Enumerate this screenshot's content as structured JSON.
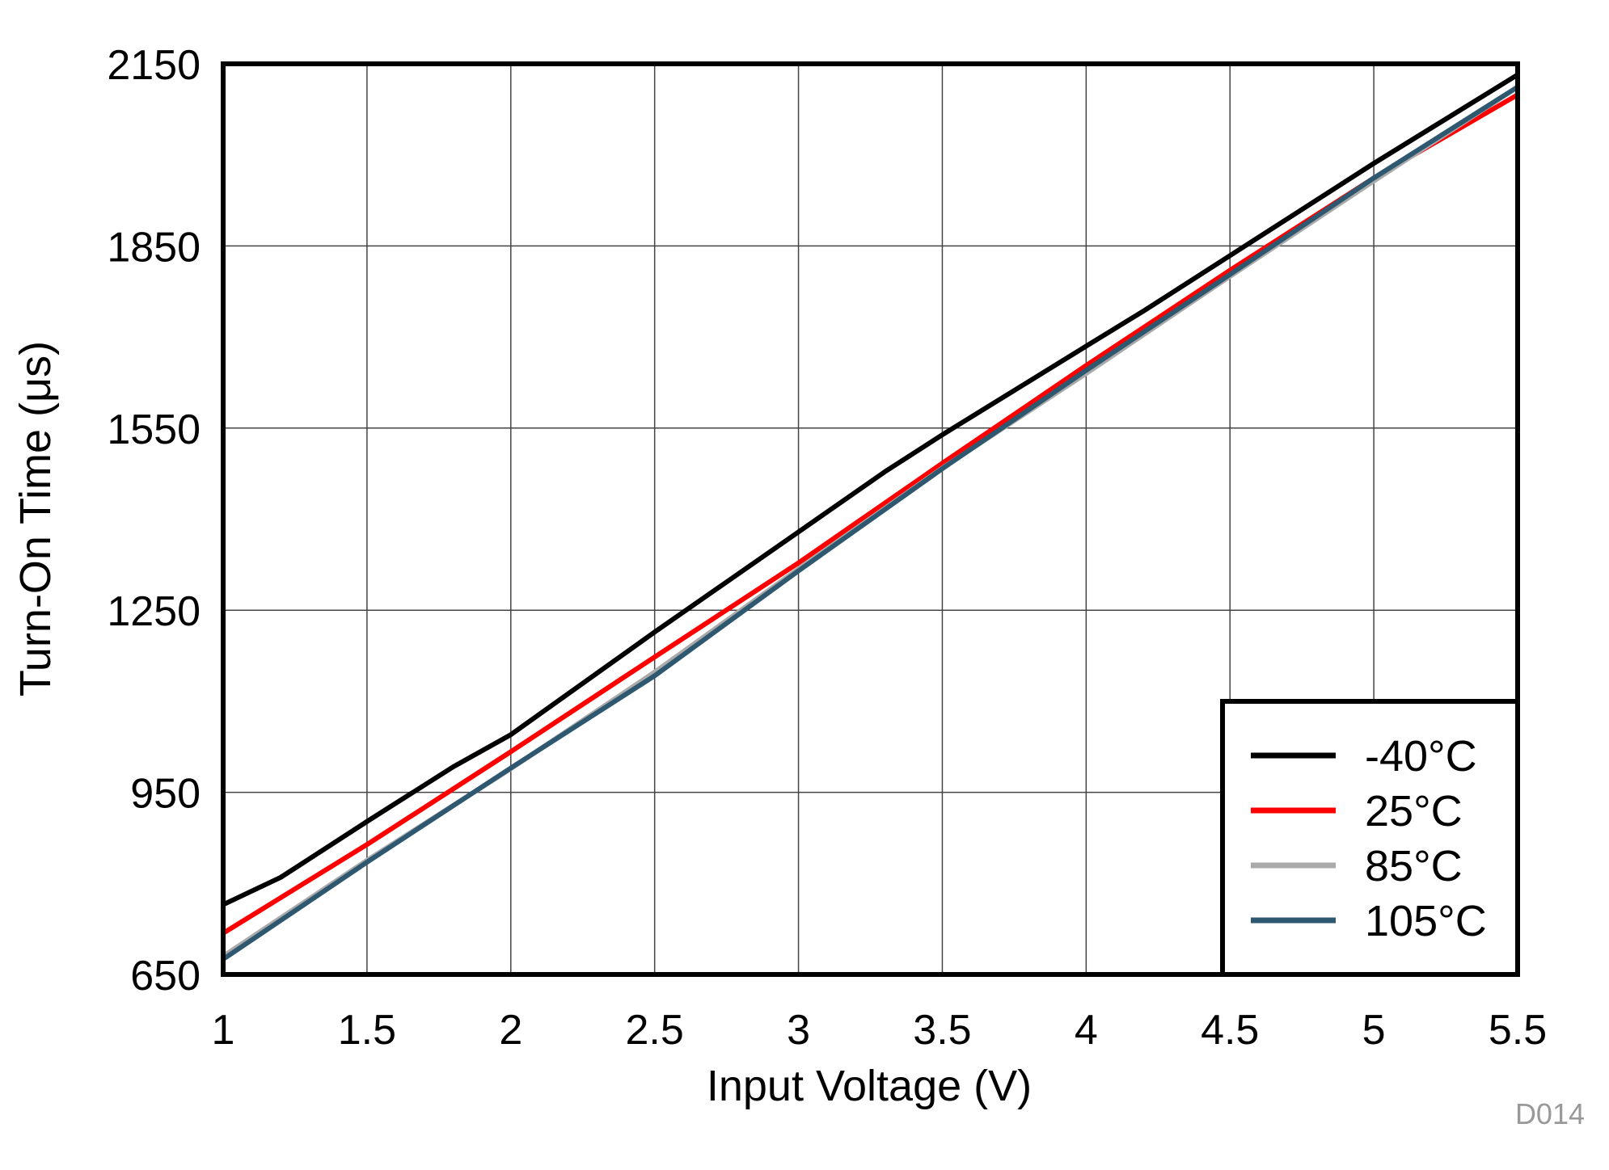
{
  "figure_id": "D014",
  "colors": {
    "grid": "#444444",
    "frame": "#000000",
    "background": "#ffffff"
  },
  "chart_data": {
    "type": "line",
    "title": "",
    "xlabel": "Input Voltage (V)",
    "ylabel": "Turn-On Time (μs)",
    "xlim": [
      1,
      5.5
    ],
    "ylim": [
      650,
      2150
    ],
    "xticks": [
      1,
      1.5,
      2,
      2.5,
      3,
      3.5,
      4,
      4.5,
      5,
      5.5
    ],
    "xtick_labels": [
      "1",
      "1.5",
      "2",
      "2.5",
      "3",
      "3.5",
      "4",
      "4.5",
      "5",
      "5.5"
    ],
    "yticks": [
      650,
      950,
      1250,
      1550,
      1850,
      2150
    ],
    "ytick_labels": [
      "650",
      "950",
      "1250",
      "1550",
      "1850",
      "2150"
    ],
    "grid": true,
    "legend_position": "bottom-right",
    "series": [
      {
        "name": "-40°C",
        "color": "#000000",
        "x": [
          1,
          1.2,
          1.5,
          1.8,
          2,
          2.5,
          3,
          3.3,
          3.5,
          4,
          4.2,
          4.5,
          5,
          5.5
        ],
        "y": [
          765,
          810,
          902,
          992,
          1045,
          1214,
          1379,
          1478,
          1539,
          1685,
          1743,
          1834,
          1986,
          2132
        ]
      },
      {
        "name": "25°C",
        "color": "#ff0000",
        "x": [
          1,
          1.5,
          2,
          2.5,
          3,
          3.5,
          4,
          4.5,
          5,
          5.5
        ],
        "y": [
          718,
          864,
          1017,
          1173,
          1328,
          1492,
          1653,
          1810,
          1962,
          2099
        ]
      },
      {
        "name": "85°C",
        "color": "#aaaaaa",
        "x": [
          1,
          1.5,
          2,
          2.5,
          3,
          3.5,
          4,
          4.5,
          5,
          5.5
        ],
        "y": [
          680,
          838,
          989,
          1148,
          1318,
          1484,
          1640,
          1800,
          1957,
          2112
        ]
      },
      {
        "name": "105°C",
        "color": "#2e5870",
        "x": [
          1,
          1.5,
          2,
          2.5,
          3,
          3.5,
          4,
          4.5,
          5,
          5.5
        ],
        "y": [
          675,
          835,
          990,
          1142,
          1315,
          1483,
          1645,
          1803,
          1962,
          2112
        ]
      }
    ]
  }
}
